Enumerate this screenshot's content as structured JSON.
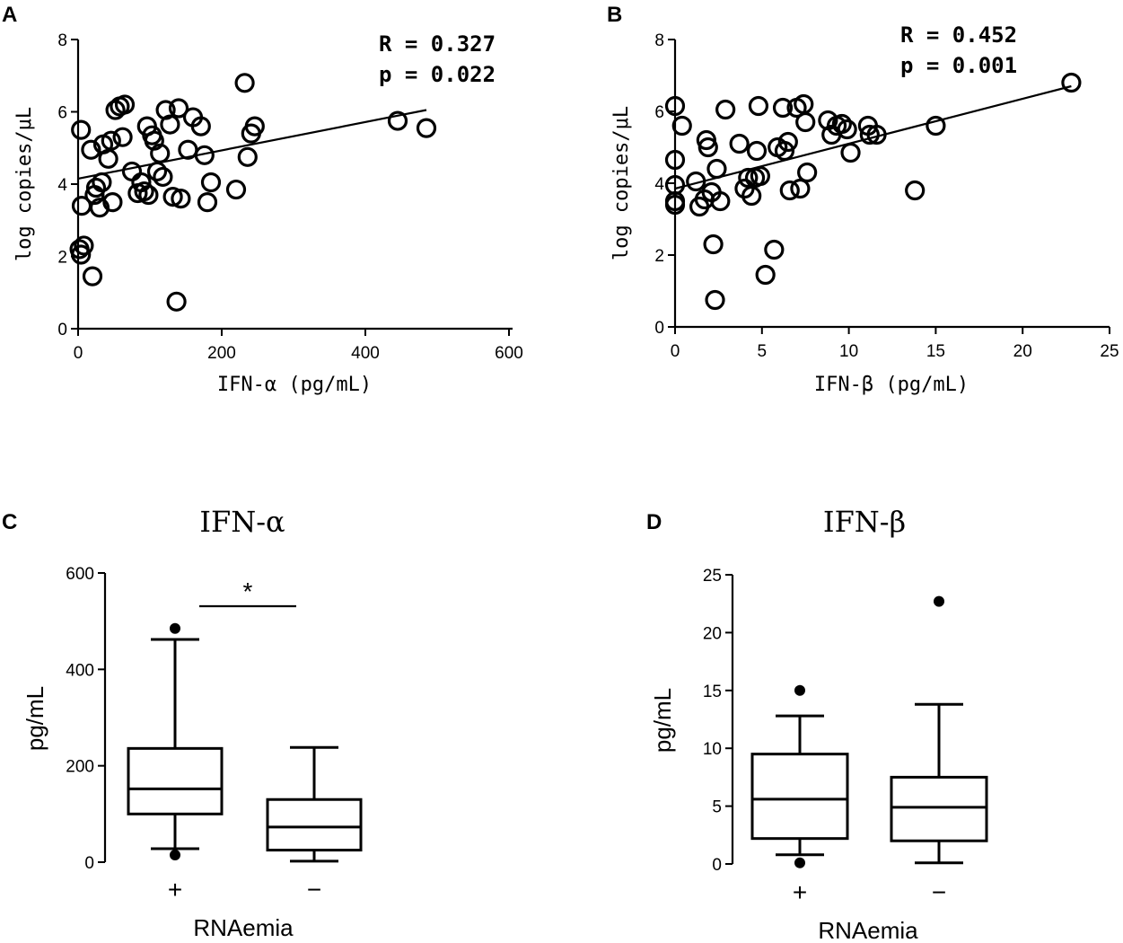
{
  "chart_data": [
    {
      "id": "A",
      "panel_label": "A",
      "type": "scatter",
      "xlabel": "IFN-α (pg/mL)",
      "ylabel": "log copies/μL",
      "xlim": [
        0,
        600
      ],
      "ylim": [
        0,
        8
      ],
      "xticks": [
        0,
        200,
        400,
        600
      ],
      "yticks": [
        0,
        2,
        4,
        6,
        8
      ],
      "annotation": [
        "R = 0.327",
        "p = 0.022"
      ],
      "regression": {
        "x": [
          0,
          485
        ],
        "y": [
          4.15,
          6.05
        ]
      },
      "points": [
        [
          4,
          5.5
        ],
        [
          5,
          3.4
        ],
        [
          2,
          2.2
        ],
        [
          4,
          2.05
        ],
        [
          8,
          2.3
        ],
        [
          18,
          4.95
        ],
        [
          23,
          3.7
        ],
        [
          25,
          3.9
        ],
        [
          30,
          3.35
        ],
        [
          33,
          4.05
        ],
        [
          35,
          5.1
        ],
        [
          42,
          4.7
        ],
        [
          46,
          5.2
        ],
        [
          48,
          3.5
        ],
        [
          52,
          6.05
        ],
        [
          58,
          6.15
        ],
        [
          62,
          5.3
        ],
        [
          65,
          6.2
        ],
        [
          75,
          4.35
        ],
        [
          83,
          3.75
        ],
        [
          88,
          4.05
        ],
        [
          92,
          3.8
        ],
        [
          96,
          5.6
        ],
        [
          98,
          3.7
        ],
        [
          103,
          5.35
        ],
        [
          106,
          5.2
        ],
        [
          110,
          4.35
        ],
        [
          114,
          4.85
        ],
        [
          118,
          4.2
        ],
        [
          122,
          6.05
        ],
        [
          128,
          5.65
        ],
        [
          132,
          3.65
        ],
        [
          137,
          0.75
        ],
        [
          140,
          6.1
        ],
        [
          143,
          3.6
        ],
        [
          153,
          4.95
        ],
        [
          160,
          5.85
        ],
        [
          171,
          5.6
        ],
        [
          176,
          4.8
        ],
        [
          180,
          3.5
        ],
        [
          185,
          4.05
        ],
        [
          220,
          3.85
        ],
        [
          232,
          6.8
        ],
        [
          236,
          4.75
        ],
        [
          241,
          5.4
        ],
        [
          246,
          5.6
        ],
        [
          445,
          5.75
        ],
        [
          485,
          5.55
        ],
        [
          20,
          1.45
        ]
      ]
    },
    {
      "id": "B",
      "panel_label": "B",
      "type": "scatter",
      "xlabel": "IFN-β (pg/mL)",
      "ylabel": "log copies/μL",
      "xlim": [
        0,
        25
      ],
      "ylim": [
        0,
        8
      ],
      "xticks": [
        0,
        5,
        10,
        15,
        20,
        25
      ],
      "yticks": [
        0,
        2,
        4,
        6,
        8
      ],
      "annotation": [
        "R = 0.452",
        "p = 0.001"
      ],
      "regression": {
        "x": [
          0,
          22.8
        ],
        "y": [
          3.85,
          6.7
        ]
      },
      "points": [
        [
          0,
          6.15
        ],
        [
          0,
          4.65
        ],
        [
          0,
          3.95
        ],
        [
          0,
          3.5
        ],
        [
          0,
          3.4
        ],
        [
          0.4,
          5.6
        ],
        [
          1.2,
          4.05
        ],
        [
          1.4,
          3.35
        ],
        [
          1.7,
          3.55
        ],
        [
          1.8,
          5.2
        ],
        [
          1.9,
          5.0
        ],
        [
          2.1,
          3.75
        ],
        [
          2.2,
          2.3
        ],
        [
          2.3,
          0.75
        ],
        [
          2.4,
          4.4
        ],
        [
          2.6,
          3.5
        ],
        [
          2.9,
          6.05
        ],
        [
          3.7,
          5.1
        ],
        [
          4.0,
          3.85
        ],
        [
          4.2,
          4.15
        ],
        [
          4.4,
          3.65
        ],
        [
          4.6,
          4.15
        ],
        [
          4.7,
          4.9
        ],
        [
          4.8,
          6.15
        ],
        [
          5.2,
          1.45
        ],
        [
          5.7,
          2.15
        ],
        [
          5.9,
          5.0
        ],
        [
          6.2,
          6.1
        ],
        [
          6.3,
          4.9
        ],
        [
          6.5,
          5.15
        ],
        [
          6.6,
          3.8
        ],
        [
          7.0,
          6.1
        ],
        [
          7.2,
          3.85
        ],
        [
          7.4,
          6.2
        ],
        [
          7.5,
          5.7
        ],
        [
          7.6,
          4.3
        ],
        [
          8.8,
          5.75
        ],
        [
          9.0,
          5.35
        ],
        [
          9.3,
          5.6
        ],
        [
          9.6,
          5.65
        ],
        [
          9.9,
          5.5
        ],
        [
          10.1,
          4.85
        ],
        [
          11.1,
          5.6
        ],
        [
          11.2,
          5.35
        ],
        [
          11.6,
          5.35
        ],
        [
          13.8,
          3.8
        ],
        [
          15.0,
          5.6
        ],
        [
          22.8,
          6.8
        ],
        [
          4.9,
          4.2
        ]
      ]
    },
    {
      "id": "C",
      "panel_label": "C",
      "type": "box",
      "title": "IFN-α",
      "xlabel": "RNAemia",
      "ylabel": "pg/mL",
      "ylim": [
        0,
        600
      ],
      "yticks": [
        0,
        200,
        400,
        600
      ],
      "categories": [
        "+",
        "−"
      ],
      "boxes": [
        {
          "whisker_low": 28,
          "q1": 100,
          "median": 152,
          "q3": 236,
          "whisker_high": 462,
          "outliers": [
            485,
            15
          ]
        },
        {
          "whisker_low": 2,
          "q1": 25,
          "median": 73,
          "q3": 130,
          "whisker_high": 238,
          "outliers": []
        }
      ],
      "significance": "*"
    },
    {
      "id": "D",
      "panel_label": "D",
      "type": "box",
      "title": "IFN-β",
      "xlabel": "RNAemia",
      "ylabel": "pg/mL",
      "ylim": [
        0,
        25
      ],
      "yticks": [
        0,
        5,
        10,
        15,
        20,
        25
      ],
      "categories": [
        "+",
        "−"
      ],
      "boxes": [
        {
          "whisker_low": 0.8,
          "q1": 2.2,
          "median": 5.6,
          "q3": 9.5,
          "whisker_high": 12.8,
          "outliers": [
            15.0,
            0.1
          ]
        },
        {
          "whisker_low": 0.1,
          "q1": 2.0,
          "median": 4.9,
          "q3": 7.5,
          "whisker_high": 13.8,
          "outliers": [
            22.7
          ]
        }
      ],
      "significance": ""
    }
  ]
}
